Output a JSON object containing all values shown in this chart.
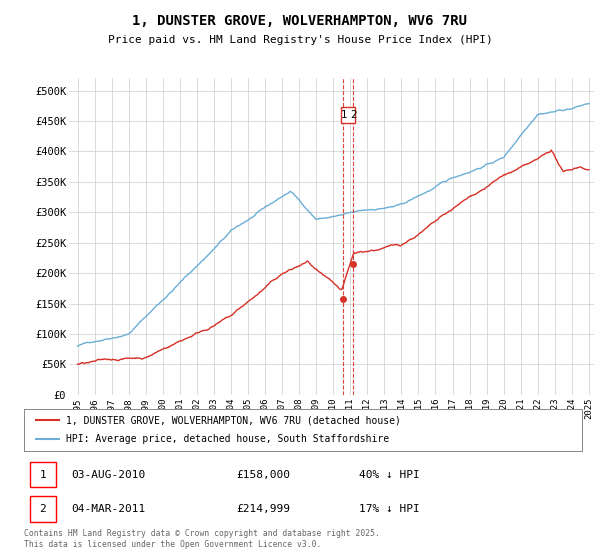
{
  "title": "1, DUNSTER GROVE, WOLVERHAMPTON, WV6 7RU",
  "subtitle": "Price paid vs. HM Land Registry's House Price Index (HPI)",
  "ylim": [
    0,
    520000
  ],
  "yticks": [
    0,
    50000,
    100000,
    150000,
    200000,
    250000,
    300000,
    350000,
    400000,
    450000,
    500000
  ],
  "ytick_labels": [
    "£0",
    "£50K",
    "£100K",
    "£150K",
    "£200K",
    "£250K",
    "£300K",
    "£350K",
    "£400K",
    "£450K",
    "£500K"
  ],
  "xmin_year": 1995,
  "xmax_year": 2025,
  "xticks": [
    1995,
    1996,
    1997,
    1998,
    1999,
    2000,
    2001,
    2002,
    2003,
    2004,
    2005,
    2006,
    2007,
    2008,
    2009,
    2010,
    2011,
    2012,
    2013,
    2014,
    2015,
    2016,
    2017,
    2018,
    2019,
    2020,
    2021,
    2022,
    2023,
    2024,
    2025
  ],
  "hpi_color": "#6baed6",
  "price_color": "#d73027",
  "vline_color": "#d73027",
  "legend_label_price": "1, DUNSTER GROVE, WOLVERHAMPTON, WV6 7RU (detached house)",
  "legend_label_hpi": "HPI: Average price, detached house, South Staffordshire",
  "transaction1_date": "03-AUG-2010",
  "transaction1_price": "£158,000",
  "transaction1_pct": "40% ↓ HPI",
  "transaction1_year": 2010.59,
  "transaction1_value": 158000,
  "transaction2_date": "04-MAR-2011",
  "transaction2_price": "£214,999",
  "transaction2_pct": "17% ↓ HPI",
  "transaction2_year": 2011.17,
  "transaction2_value": 214999,
  "footer": "Contains HM Land Registry data © Crown copyright and database right 2025.\nThis data is licensed under the Open Government Licence v3.0.",
  "background_color": "#ffffff",
  "grid_color": "#cccccc"
}
